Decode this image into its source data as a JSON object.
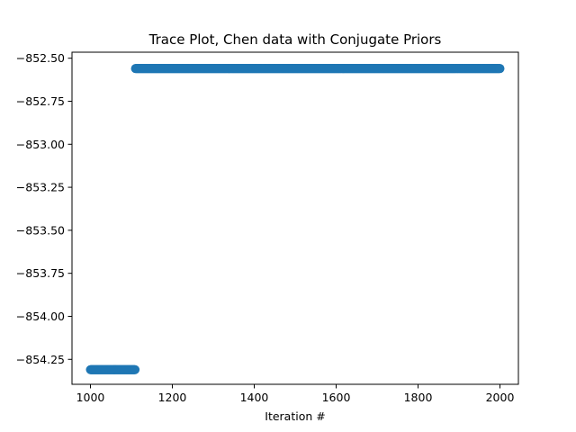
{
  "chart_data": {
    "type": "scatter",
    "title": "Trace Plot, Chen data with Conjugate Priors",
    "xlabel": "Iteration #",
    "ylabel": "",
    "xlim": [
      955,
      2045
    ],
    "ylim": [
      -854.395,
      -852.465
    ],
    "xticks": [
      1000,
      1200,
      1400,
      1600,
      1800,
      2000
    ],
    "yticks": [
      -852.5,
      -852.75,
      -853.0,
      -853.25,
      -853.5,
      -853.75,
      -854.0,
      -854.25
    ],
    "xtick_labels": [
      "1000",
      "1200",
      "1400",
      "1600",
      "1800",
      "2000"
    ],
    "ytick_labels": [
      "−852.50",
      "−852.75",
      "−853.00",
      "−853.25",
      "−853.50",
      "−853.75",
      "−854.00",
      "−854.25"
    ],
    "grid": false,
    "marker_color": "#1f77b4",
    "segments": [
      {
        "x_start": 1000,
        "x_end": 1109,
        "y": -854.31
      },
      {
        "x_start": 1110,
        "x_end": 2000,
        "y": -852.56
      }
    ]
  }
}
